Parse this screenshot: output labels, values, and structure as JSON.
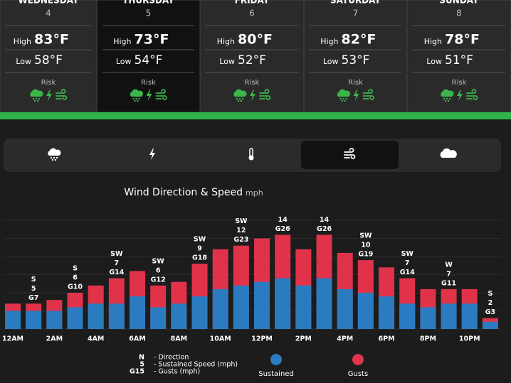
{
  "days": [
    {
      "name": "WEDNESDAY",
      "date": "4",
      "high": "83°F",
      "low": "58°F"
    },
    {
      "name": "THURSDAY",
      "date": "5",
      "high": "73°F",
      "low": "54°F"
    },
    {
      "name": "FRIDAY",
      "date": "6",
      "high": "80°F",
      "low": "52°F"
    },
    {
      "name": "SATURDAY",
      "date": "7",
      "high": "82°F",
      "low": "53°F"
    },
    {
      "name": "SUNDAY",
      "date": "8",
      "high": "78°F",
      "low": "51°F"
    }
  ],
  "labels": {
    "high": "High",
    "low": "Low",
    "risk": "Risk"
  },
  "chart_data": {
    "type": "bar",
    "title": "Wind Direction & Speed",
    "unit": "mph",
    "categories": [
      "12AM",
      null,
      "2AM",
      null,
      "4AM",
      null,
      "6AM",
      null,
      "8AM",
      null,
      "10AM",
      null,
      "12PM",
      null,
      "2PM",
      null,
      "4PM",
      null,
      "6PM",
      null,
      "8PM",
      null,
      "10PM",
      null
    ],
    "series": [
      {
        "name": "Sustained",
        "color": "#2b7bc0",
        "values": [
          5,
          5,
          5,
          6,
          7,
          7,
          9,
          6,
          7,
          9,
          11,
          12,
          13,
          14,
          12,
          14,
          11,
          10,
          9,
          7,
          6,
          7,
          7,
          2
        ],
        "value_labels": [
          null,
          "5",
          null,
          "6",
          null,
          "7",
          null,
          "6",
          null,
          "9",
          null,
          "12",
          null,
          "14",
          null,
          "14",
          null,
          "10",
          null,
          "7",
          null,
          "7",
          null,
          "2"
        ]
      },
      {
        "name": "Gusts",
        "color": "#e0334a",
        "values": [
          7,
          7,
          8,
          10,
          12,
          14,
          16,
          12,
          13,
          18,
          22,
          23,
          25,
          26,
          22,
          26,
          21,
          19,
          17,
          14,
          11,
          11,
          11,
          3
        ],
        "value_labels": [
          null,
          "G7",
          null,
          "G10",
          null,
          "G14",
          null,
          "G12",
          null,
          "G18",
          null,
          "G23",
          null,
          "G26",
          null,
          "G26",
          null,
          "G19",
          null,
          "G14",
          null,
          "G11",
          null,
          "G3"
        ]
      }
    ],
    "directions": [
      null,
      "S",
      null,
      "S",
      null,
      "SW",
      null,
      "SW",
      null,
      "SW",
      null,
      "SW",
      null,
      null,
      null,
      null,
      null,
      "SW",
      null,
      "SW",
      null,
      "W",
      null,
      "S"
    ],
    "ylim": [
      0,
      30
    ],
    "key": [
      {
        "symbol": "N",
        "text": "- Direction"
      },
      {
        "symbol": "5",
        "text": "- Sustained Speed (mph)"
      },
      {
        "symbol": "G15",
        "text": "- Gusts (mph)"
      }
    ]
  }
}
